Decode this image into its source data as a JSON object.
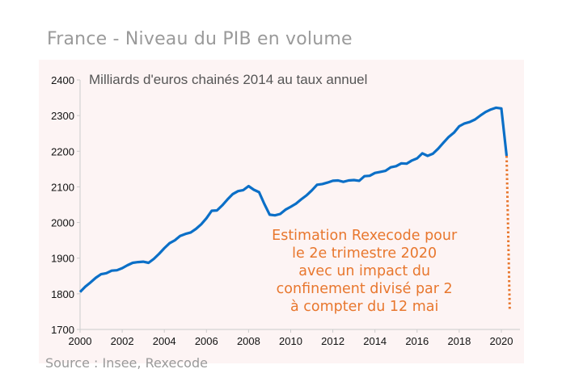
{
  "header": {
    "title": "France - Niveau du PIB en volume",
    "source": "Source : Insee, Rexecode"
  },
  "colors": {
    "background_plot": "#fdf4f4",
    "line": "#0b6fc7",
    "estimate": "#e8772e",
    "axis": "#cccccc"
  },
  "chart_data": {
    "type": "line",
    "title": "France - Niveau du PIB en volume",
    "subtitle": "Milliards d'euros chainés  2014 au taux annuel",
    "xlabel": "",
    "ylabel": "",
    "xlim": [
      2000,
      2021
    ],
    "ylim": [
      1700,
      2400
    ],
    "x_ticks": [
      "2000",
      "2002",
      "2004",
      "2006",
      "2008",
      "2010",
      "2012",
      "2014",
      "2016",
      "2018",
      "2020"
    ],
    "y_ticks": [
      "1700",
      "1800",
      "1900",
      "2000",
      "2100",
      "2200",
      "2300",
      "2400"
    ],
    "grid": false,
    "series": [
      {
        "name": "PIB en volume",
        "style": "solid",
        "color": "#0b6fc7",
        "x": [
          2000.0,
          2000.25,
          2000.5,
          2000.75,
          2001.0,
          2001.25,
          2001.5,
          2001.75,
          2002.0,
          2002.25,
          2002.5,
          2002.75,
          2003.0,
          2003.25,
          2003.5,
          2003.75,
          2004.0,
          2004.25,
          2004.5,
          2004.75,
          2005.0,
          2005.25,
          2005.5,
          2005.75,
          2006.0,
          2006.25,
          2006.5,
          2006.75,
          2007.0,
          2007.25,
          2007.5,
          2007.75,
          2008.0,
          2008.25,
          2008.5,
          2008.75,
          2009.0,
          2009.25,
          2009.5,
          2009.75,
          2010.0,
          2010.25,
          2010.5,
          2010.75,
          2011.0,
          2011.25,
          2011.5,
          2011.75,
          2012.0,
          2012.25,
          2012.5,
          2012.75,
          2013.0,
          2013.25,
          2013.5,
          2013.75,
          2014.0,
          2014.25,
          2014.5,
          2014.75,
          2015.0,
          2015.25,
          2015.5,
          2015.75,
          2016.0,
          2016.25,
          2016.5,
          2016.75,
          2017.0,
          2017.25,
          2017.5,
          2017.75,
          2018.0,
          2018.25,
          2018.5,
          2018.75,
          2019.0,
          2019.25,
          2019.5,
          2019.75,
          2020.0,
          2020.25
        ],
        "values": [
          1805,
          1820,
          1832,
          1845,
          1855,
          1858,
          1865,
          1866,
          1872,
          1880,
          1887,
          1889,
          1890,
          1887,
          1898,
          1912,
          1928,
          1942,
          1950,
          1962,
          1968,
          1972,
          1982,
          1995,
          2012,
          2033,
          2034,
          2048,
          2065,
          2080,
          2088,
          2091,
          2102,
          2092,
          2085,
          2052,
          2022,
          2020,
          2024,
          2036,
          2044,
          2053,
          2065,
          2076,
          2090,
          2106,
          2108,
          2112,
          2117,
          2118,
          2114,
          2118,
          2119,
          2117,
          2130,
          2131,
          2139,
          2142,
          2145,
          2155,
          2158,
          2166,
          2165,
          2174,
          2180,
          2194,
          2187,
          2193,
          2207,
          2224,
          2240,
          2252,
          2270,
          2278,
          2282,
          2289,
          2300,
          2310,
          2317,
          2322,
          2320,
          2187
        ]
      },
      {
        "name": "Estimation Rexecode T2 2020",
        "style": "dotted",
        "color": "#e8772e",
        "x": [
          2020.25,
          2020.4
        ],
        "values": [
          2187,
          1752
        ]
      }
    ],
    "annotations": [
      {
        "text_lines": [
          "Estimation Rexecode pour",
          "le 2e trimestre 2020",
          "avec un impact du",
          "confinement divisé par 2",
          "à compter du 12 mai"
        ],
        "color": "#e8772e",
        "anchor_x": 2013.5,
        "anchor_y": 1950
      }
    ],
    "legend": "none"
  }
}
